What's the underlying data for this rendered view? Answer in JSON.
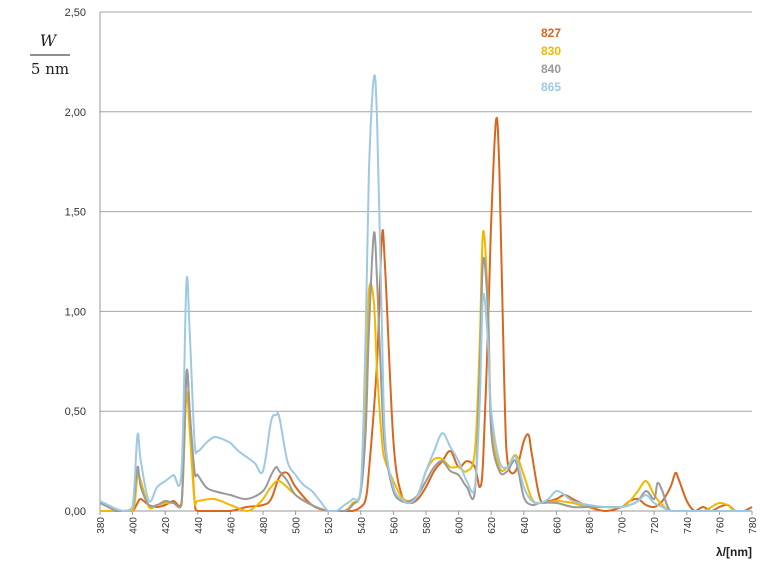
{
  "chart_data": {
    "type": "line",
    "title": "",
    "ylabel_numerator": "W",
    "ylabel_denominator": "5 nm",
    "xlabel": "λ/[nm]",
    "xlim": [
      380,
      780
    ],
    "ylim": [
      0,
      2.5
    ],
    "grid": true,
    "legend_position": "top-right",
    "y_ticks": [
      "0,00",
      "0,50",
      "1,00",
      "1,50",
      "2,00",
      "2,50"
    ],
    "y_tick_values": [
      0,
      0.5,
      1.0,
      1.5,
      2.0,
      2.5
    ],
    "x_ticks": [
      380,
      400,
      420,
      440,
      460,
      480,
      500,
      520,
      540,
      560,
      580,
      600,
      620,
      640,
      660,
      680,
      700,
      720,
      740,
      760,
      780
    ],
    "series": [
      {
        "name": "827",
        "color": "#d9661f",
        "x": [
          380,
          385,
          390,
          395,
          400,
          403,
          405,
          410,
          415,
          420,
          425,
          430,
          433,
          435,
          438,
          440,
          450,
          460,
          470,
          480,
          485,
          490,
          495,
          500,
          510,
          520,
          530,
          535,
          540,
          543,
          545,
          550,
          553,
          555,
          560,
          565,
          570,
          575,
          580,
          585,
          590,
          595,
          600,
          605,
          610,
          613,
          615,
          618,
          620,
          623,
          625,
          628,
          630,
          635,
          640,
          643,
          645,
          650,
          655,
          660,
          665,
          670,
          675,
          680,
          690,
          700,
          705,
          710,
          715,
          720,
          725,
          730,
          733,
          735,
          740,
          745,
          750,
          755,
          760,
          765,
          770,
          775,
          780
        ],
        "y": [
          0,
          0,
          0,
          0,
          0,
          0.04,
          0.06,
          0.03,
          0.02,
          0.03,
          0.05,
          0.04,
          0.68,
          0.5,
          0.05,
          0,
          0,
          0,
          0.02,
          0.03,
          0.06,
          0.17,
          0.19,
          0.12,
          0.03,
          0,
          0,
          0,
          0.02,
          0.06,
          0.2,
          0.75,
          1.38,
          1.2,
          0.35,
          0.08,
          0.04,
          0.06,
          0.12,
          0.2,
          0.25,
          0.3,
          0.22,
          0.25,
          0.22,
          0.12,
          0.25,
          0.9,
          1.45,
          1.96,
          1.7,
          0.65,
          0.25,
          0.2,
          0.35,
          0.38,
          0.28,
          0.06,
          0.05,
          0.06,
          0.08,
          0.06,
          0.04,
          0.02,
          0,
          0.02,
          0.05,
          0.06,
          0.03,
          0.02,
          0.05,
          0.12,
          0.19,
          0.16,
          0.05,
          0,
          0.02,
          0,
          0.02,
          0.03,
          0,
          0,
          0.02
        ]
      },
      {
        "name": "830",
        "color": "#f2b800",
        "x": [
          380,
          390,
          400,
          403,
          405,
          410,
          415,
          420,
          425,
          430,
          433,
          435,
          438,
          440,
          450,
          460,
          470,
          475,
          480,
          485,
          490,
          500,
          510,
          520,
          530,
          535,
          540,
          543,
          545,
          548,
          550,
          553,
          555,
          560,
          565,
          570,
          575,
          580,
          585,
          590,
          595,
          600,
          605,
          610,
          613,
          615,
          618,
          620,
          625,
          630,
          635,
          640,
          645,
          650,
          660,
          670,
          680,
          690,
          700,
          705,
          710,
          715,
          720,
          725,
          730,
          740,
          750,
          755,
          760,
          765,
          770,
          780
        ],
        "y": [
          0,
          0,
          0,
          0.18,
          0.15,
          0.02,
          0.03,
          0.04,
          0.04,
          0.03,
          0.58,
          0.4,
          0.05,
          0.05,
          0.06,
          0.03,
          0,
          0.02,
          0.06,
          0.12,
          0.15,
          0.08,
          0.03,
          0,
          0,
          0.04,
          0.1,
          0.55,
          1.1,
          1.05,
          0.7,
          0.35,
          0.25,
          0.15,
          0.07,
          0.05,
          0.08,
          0.2,
          0.26,
          0.26,
          0.22,
          0.22,
          0.2,
          0.3,
          0.85,
          1.4,
          1.05,
          0.45,
          0.22,
          0.22,
          0.28,
          0.18,
          0.06,
          0.04,
          0.05,
          0.04,
          0.02,
          0.02,
          0.02,
          0.05,
          0.1,
          0.15,
          0.08,
          0.03,
          0,
          0,
          0,
          0.02,
          0.04,
          0.03,
          0,
          0
        ]
      },
      {
        "name": "840",
        "color": "#9a9a9a",
        "x": [
          380,
          385,
          390,
          395,
          400,
          403,
          405,
          410,
          415,
          420,
          425,
          430,
          433,
          435,
          438,
          440,
          445,
          450,
          460,
          470,
          480,
          485,
          488,
          490,
          495,
          500,
          510,
          520,
          530,
          535,
          540,
          543,
          545,
          548,
          550,
          553,
          555,
          560,
          565,
          570,
          575,
          580,
          585,
          590,
          595,
          600,
          605,
          610,
          613,
          615,
          618,
          620,
          625,
          630,
          635,
          640,
          645,
          650,
          660,
          670,
          680,
          690,
          700,
          705,
          710,
          715,
          720,
          722,
          725,
          730,
          740,
          750,
          760,
          770,
          780
        ],
        "y": [
          0.04,
          0.02,
          0,
          0,
          0.02,
          0.22,
          0.12,
          0.03,
          0.03,
          0.05,
          0.04,
          0.03,
          0.69,
          0.5,
          0.2,
          0.18,
          0.12,
          0.1,
          0.08,
          0.06,
          0.1,
          0.18,
          0.22,
          0.2,
          0.15,
          0.08,
          0.03,
          0,
          0,
          0.03,
          0.1,
          0.4,
          0.9,
          1.39,
          1.15,
          0.55,
          0.3,
          0.1,
          0.05,
          0.05,
          0.08,
          0.15,
          0.22,
          0.25,
          0.2,
          0.18,
          0.12,
          0.1,
          0.7,
          1.26,
          1.0,
          0.4,
          0.2,
          0.2,
          0.25,
          0.07,
          0.03,
          0.04,
          0.04,
          0.02,
          0.02,
          0.02,
          0.02,
          0.03,
          0.05,
          0.1,
          0.06,
          0.14,
          0.1,
          0,
          0,
          0,
          0,
          0,
          0
        ]
      },
      {
        "name": "865",
        "color": "#9ec9e3",
        "x": [
          380,
          385,
          390,
          395,
          400,
          403,
          405,
          410,
          415,
          420,
          425,
          430,
          433,
          435,
          438,
          440,
          445,
          450,
          455,
          460,
          465,
          470,
          475,
          480,
          485,
          488,
          490,
          495,
          500,
          505,
          510,
          515,
          520,
          525,
          530,
          535,
          540,
          543,
          545,
          548,
          550,
          553,
          555,
          560,
          565,
          570,
          575,
          580,
          585,
          590,
          595,
          600,
          605,
          610,
          613,
          615,
          618,
          620,
          625,
          630,
          635,
          640,
          645,
          650,
          655,
          660,
          665,
          670,
          680,
          690,
          700,
          705,
          710,
          715,
          720,
          725,
          730,
          740,
          750,
          760,
          770,
          780
        ],
        "y": [
          0.05,
          0.03,
          0.01,
          0,
          0.02,
          0.38,
          0.25,
          0.05,
          0.12,
          0.15,
          0.18,
          0.2,
          1.14,
          0.9,
          0.35,
          0.3,
          0.34,
          0.37,
          0.36,
          0.34,
          0.3,
          0.27,
          0.24,
          0.2,
          0.45,
          0.48,
          0.47,
          0.25,
          0.18,
          0.13,
          0.1,
          0.05,
          0,
          0,
          0.03,
          0.06,
          0.12,
          0.9,
          1.7,
          2.17,
          1.95,
          0.9,
          0.35,
          0.12,
          0.06,
          0.04,
          0.08,
          0.2,
          0.3,
          0.39,
          0.32,
          0.25,
          0.15,
          0.12,
          0.55,
          1.08,
          0.85,
          0.5,
          0.25,
          0.22,
          0.27,
          0.12,
          0.05,
          0.04,
          0.06,
          0.1,
          0.08,
          0.05,
          0.03,
          0.02,
          0.02,
          0.03,
          0.05,
          0.08,
          0.04,
          0.02,
          0,
          0,
          0,
          0,
          0,
          0
        ]
      }
    ]
  }
}
